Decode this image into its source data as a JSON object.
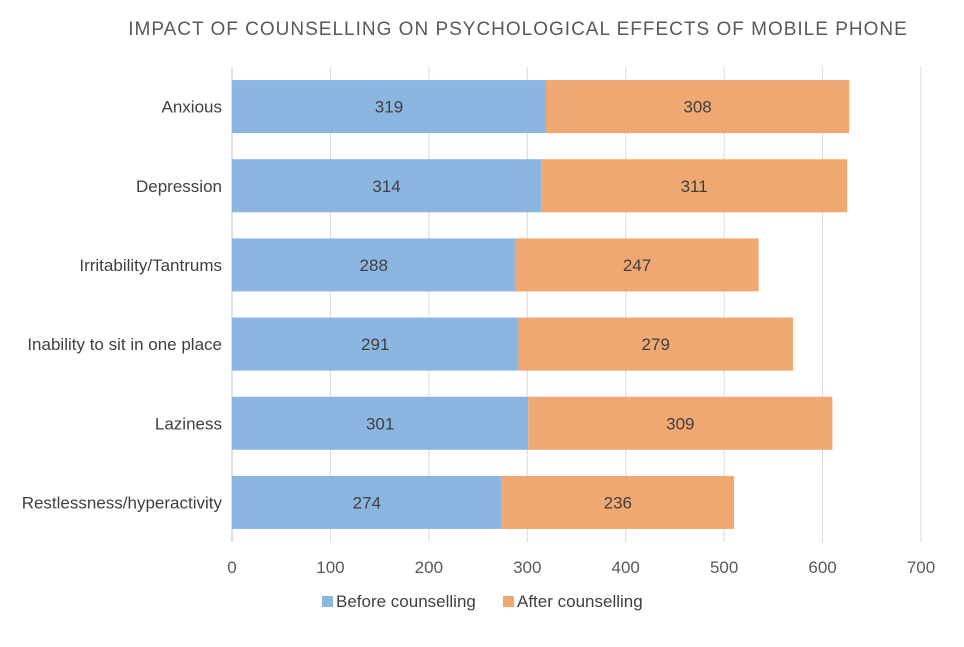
{
  "chart_data": {
    "type": "bar",
    "orientation": "horizontal",
    "stacked": true,
    "title": "IMPACT OF COUNSELLING ON PSYCHOLOGICAL EFFECTS OF MOBILE PHONE",
    "xlabel": "",
    "ylabel": "",
    "categories": [
      "Anxious",
      "Depression",
      "Irritability/Tantrums",
      "Inability to sit in one place",
      "Laziness",
      "Restlessness/hyperactivity"
    ],
    "series": [
      {
        "name": "Before counselling",
        "color": "#8cb6e2",
        "values": [
          319,
          314,
          288,
          291,
          301,
          274
        ]
      },
      {
        "name": "After counselling",
        "color": "#f0a873",
        "values": [
          308,
          311,
          247,
          279,
          309,
          236
        ]
      }
    ],
    "xlim": [
      0,
      700
    ],
    "xticks": [
      0,
      100,
      200,
      300,
      400,
      500,
      600,
      700
    ],
    "grid": true,
    "legend_position": "bottom"
  }
}
